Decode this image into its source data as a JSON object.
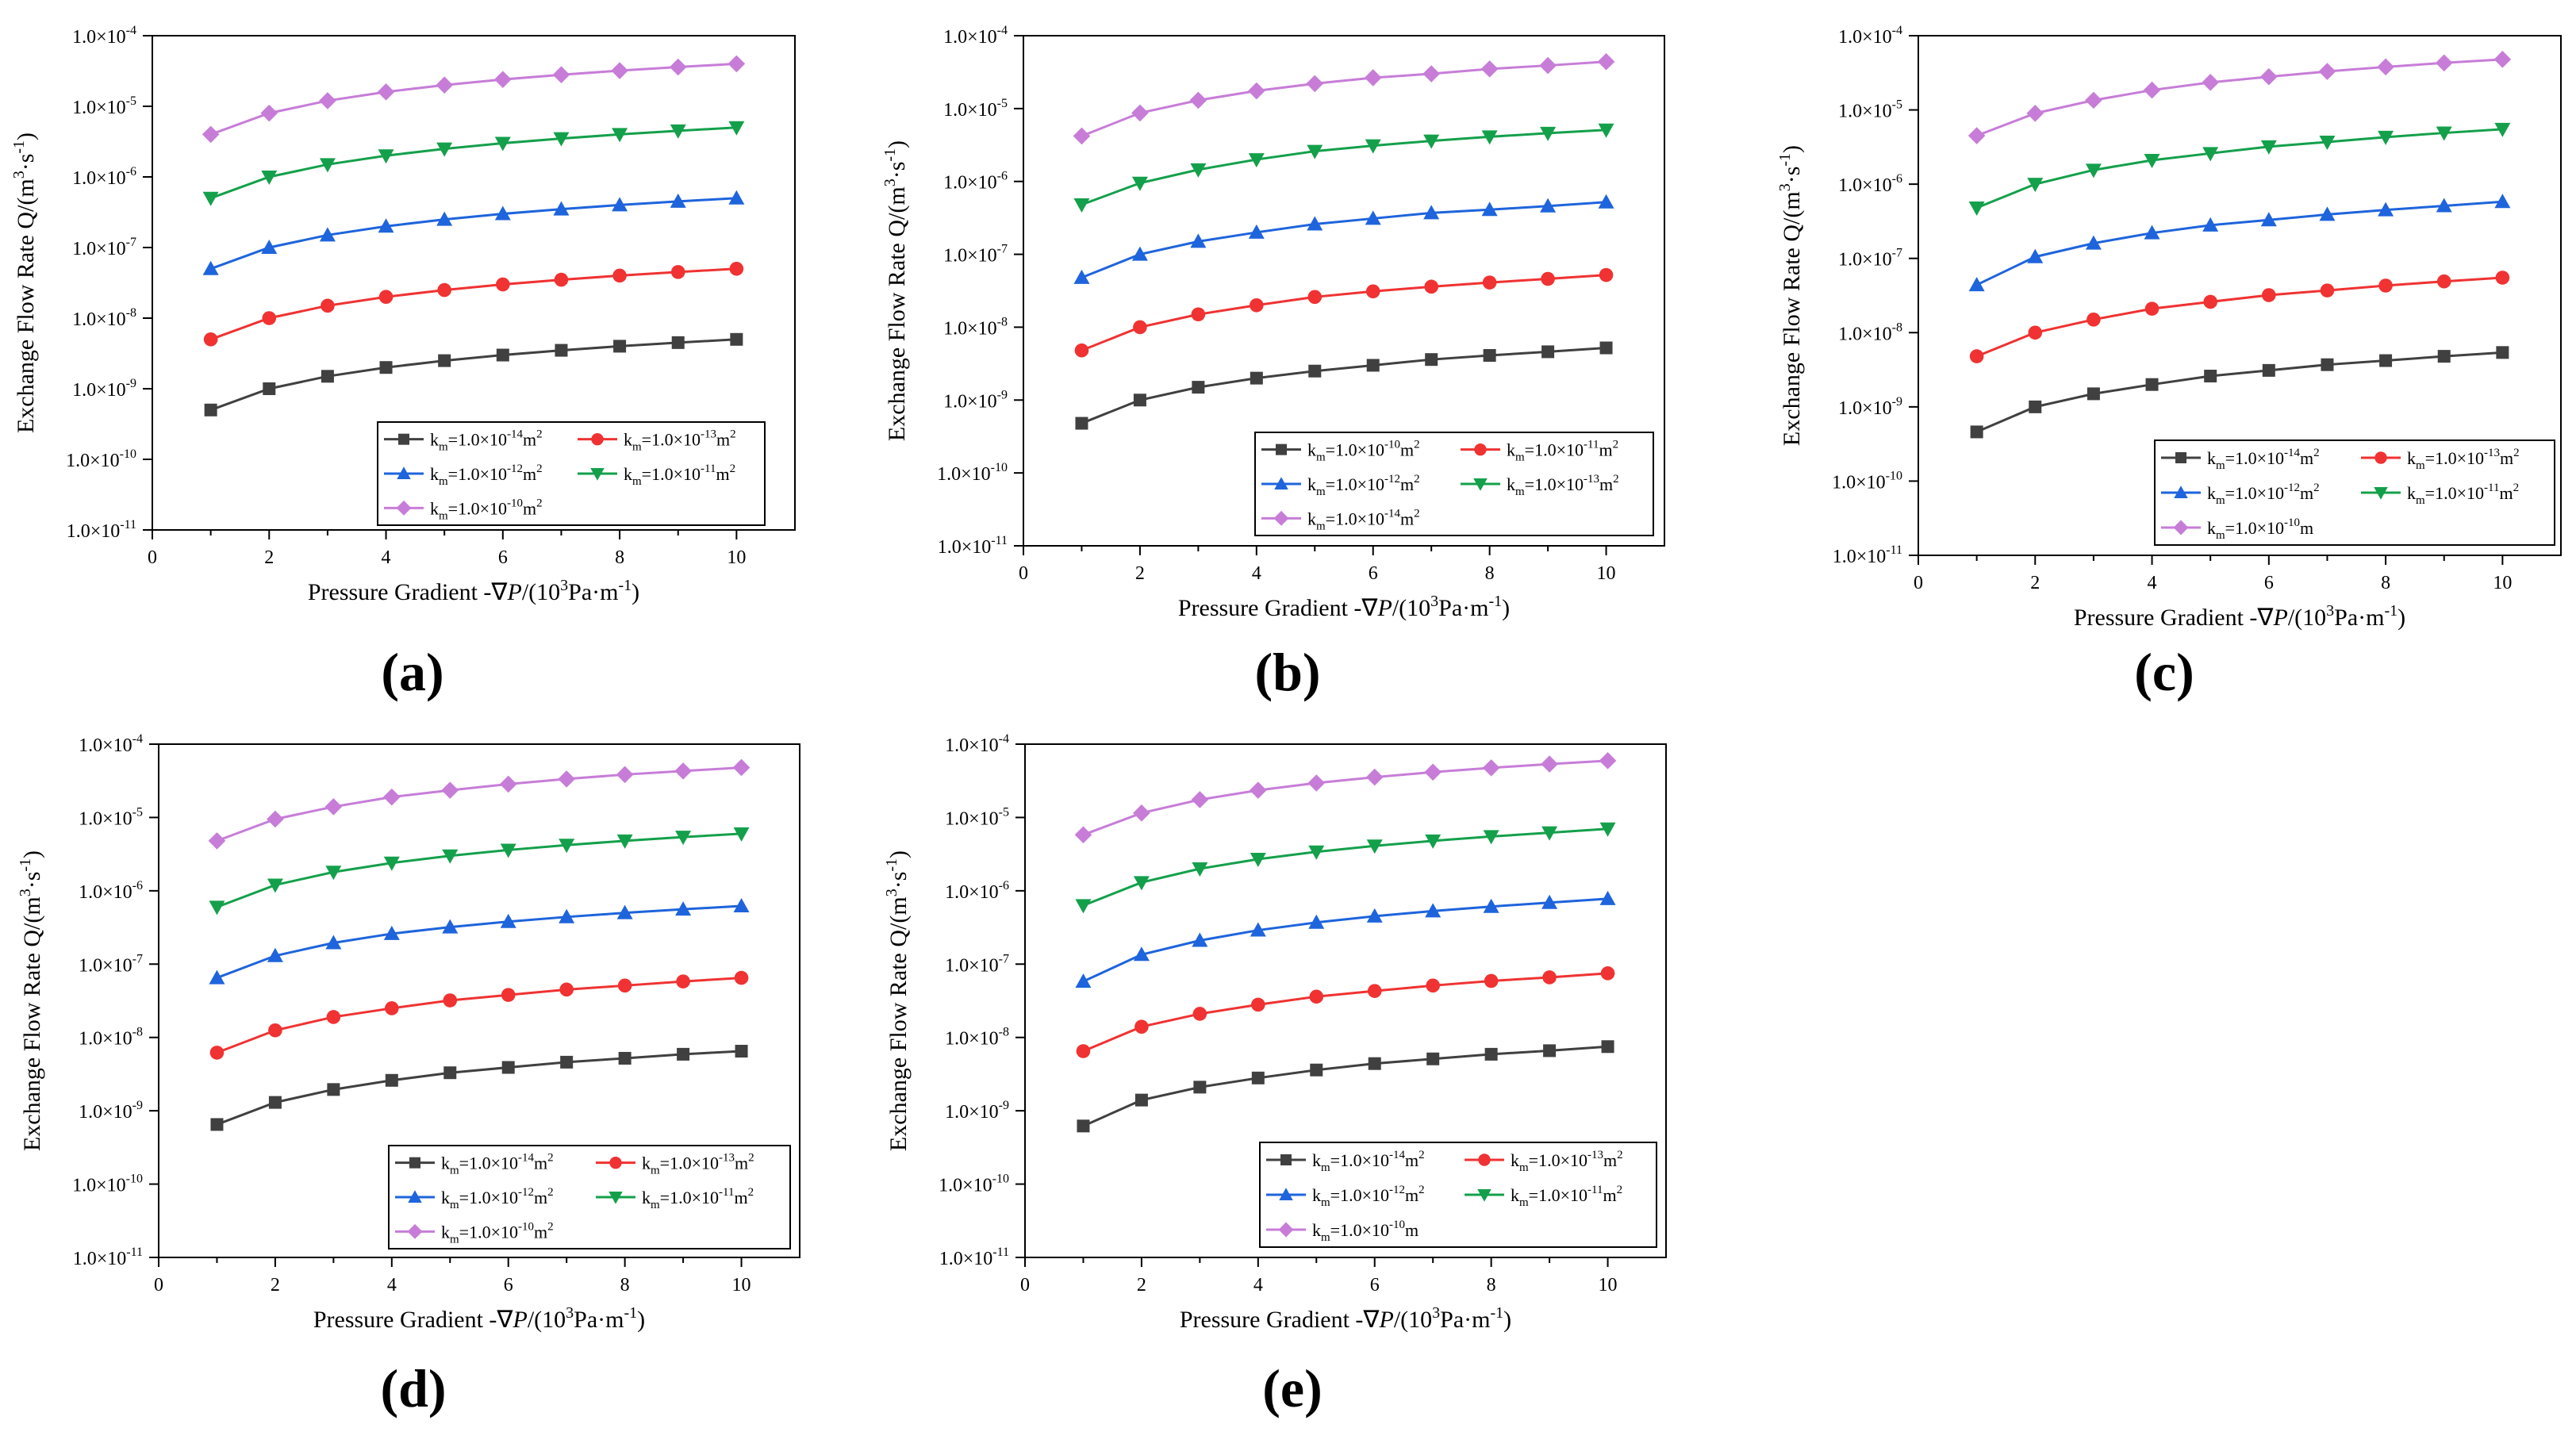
{
  "figure": {
    "colors": {
      "s1": "#404040",
      "s2": "#f03232",
      "s3": "#1e64dc",
      "s4": "#14a04b",
      "s5": "#c77dd8",
      "frame": "#000000"
    },
    "x_ticks": [
      "0",
      "2",
      "4",
      "6",
      "8",
      "10"
    ],
    "y_exponents": [
      "-11",
      "-10",
      "-9",
      "-8",
      "-7",
      "-6",
      "-5",
      "-4"
    ],
    "y_tick_base": "1.0×10",
    "xlabel": {
      "pre": "Pressure Gradient -∇",
      "italic": "P",
      "mid": "/(10",
      "sup": "3",
      "post": "Pa·m",
      "sup2": "-1",
      "end": ")"
    },
    "ylabel": {
      "pre": "Exchange Flow Rate Q/(m",
      "sup": "3",
      "mid": "·s",
      "sup2": "-1",
      "end": ")"
    },
    "legend_k": "k",
    "legend_sub": "m",
    "legend_eq": "=1.0×10"
  },
  "chart_data": [
    {
      "panel_label": "(a)",
      "type": "line",
      "x": [
        1,
        2,
        3,
        4,
        5,
        6,
        7,
        8,
        9,
        10
      ],
      "xlim": [
        0,
        11
      ],
      "ylim_log10": [
        -11,
        -4
      ],
      "xlabel": "Pressure Gradient -∇P/(10³Pa·m⁻¹)",
      "ylabel": "Exchange Flow Rate Q/(m³·s⁻¹)",
      "series": [
        {
          "name": "km=1.0×10⁻¹⁴m²",
          "exp": "-14",
          "unit": "m",
          "unit_sup": "2",
          "marker": "square",
          "color_key": "s1",
          "values": [
            5e-10,
            1e-09,
            1.5e-09,
            2e-09,
            2.5e-09,
            3e-09,
            3.5e-09,
            4e-09,
            4.5e-09,
            5e-09
          ]
        },
        {
          "name": "km=1.0×10⁻¹³m²",
          "exp": "-13",
          "unit": "m",
          "unit_sup": "2",
          "marker": "circle",
          "color_key": "s2",
          "values": [
            5e-09,
            1e-08,
            1.5e-08,
            2e-08,
            2.5e-08,
            3e-08,
            3.5e-08,
            4e-08,
            4.5e-08,
            5e-08
          ]
        },
        {
          "name": "km=1.0×10⁻¹²m²",
          "exp": "-12",
          "unit": "m",
          "unit_sup": "2",
          "marker": "triangle-up",
          "color_key": "s3",
          "values": [
            5e-08,
            1e-07,
            1.5e-07,
            2e-07,
            2.5e-07,
            3e-07,
            3.5e-07,
            4e-07,
            4.5e-07,
            5e-07
          ]
        },
        {
          "name": "km=1.0×10⁻¹¹m²",
          "exp": "-11",
          "unit": "m",
          "unit_sup": "2",
          "marker": "triangle-down",
          "color_key": "s4",
          "values": [
            5e-07,
            1e-06,
            1.5e-06,
            2e-06,
            2.5e-06,
            3e-06,
            3.5e-06,
            4e-06,
            4.5e-06,
            5e-06
          ]
        },
        {
          "name": "km=1.0×10⁻¹⁰m²",
          "exp": "-10",
          "unit": "m",
          "unit_sup": "2",
          "marker": "diamond",
          "color_key": "s5",
          "values": [
            4e-06,
            8e-06,
            1.2e-05,
            1.6e-05,
            2e-05,
            2.4e-05,
            2.8e-05,
            3.2e-05,
            3.6e-05,
            4e-05
          ]
        }
      ]
    },
    {
      "panel_label": "(b)",
      "type": "line",
      "x": [
        1,
        2,
        3,
        4,
        5,
        6,
        7,
        8,
        9,
        10
      ],
      "xlim": [
        0,
        11
      ],
      "ylim_log10": [
        -11,
        -4
      ],
      "xlabel": "Pressure Gradient -∇P/(10³Pa·m⁻¹)",
      "ylabel": "Exchange Flow Rate Q/(m³·s⁻¹)",
      "series": [
        {
          "name": "km=1.0×10⁻¹⁰m²",
          "exp": "-10",
          "unit": "m",
          "unit_sup": "2",
          "marker": "square",
          "color_key": "s1",
          "values": [
            4.8e-10,
            1e-09,
            1.5e-09,
            2e-09,
            2.5e-09,
            3e-09,
            3.6e-09,
            4.1e-09,
            4.6e-09,
            5.2e-09
          ]
        },
        {
          "name": "km=1.0×10⁻¹¹m²",
          "exp": "-11",
          "unit": "m",
          "unit_sup": "2",
          "marker": "circle",
          "color_key": "s2",
          "values": [
            4.8e-09,
            1e-08,
            1.5e-08,
            2e-08,
            2.6e-08,
            3.1e-08,
            3.6e-08,
            4.1e-08,
            4.6e-08,
            5.2e-08
          ]
        },
        {
          "name": "km=1.0×10⁻¹²m²",
          "exp": "-12",
          "unit": "m",
          "unit_sup": "2",
          "marker": "triangle-up",
          "color_key": "s3",
          "values": [
            4.8e-08,
            1e-07,
            1.5e-07,
            2e-07,
            2.6e-07,
            3.1e-07,
            3.7e-07,
            4.1e-07,
            4.6e-07,
            5.2e-07
          ]
        },
        {
          "name": "km=1.0×10⁻¹³m²",
          "exp": "-13",
          "unit": "m",
          "unit_sup": "2",
          "marker": "triangle-down",
          "color_key": "s4",
          "values": [
            4.8e-07,
            9.5e-07,
            1.45e-06,
            2e-06,
            2.6e-06,
            3.1e-06,
            3.6e-06,
            4.1e-06,
            4.6e-06,
            5.1e-06
          ]
        },
        {
          "name": "km=1.0×10⁻¹⁴m²",
          "exp": "-14",
          "unit": "m",
          "unit_sup": "2",
          "marker": "diamond",
          "color_key": "s5",
          "values": [
            4.2e-06,
            8.7e-06,
            1.3e-05,
            1.75e-05,
            2.2e-05,
            2.65e-05,
            3e-05,
            3.5e-05,
            3.9e-05,
            4.4e-05
          ]
        }
      ]
    },
    {
      "panel_label": "(c)",
      "type": "line",
      "x": [
        1,
        2,
        3,
        4,
        5,
        6,
        7,
        8,
        9,
        10
      ],
      "xlim": [
        0,
        11
      ],
      "ylim_log10": [
        -11,
        -4
      ],
      "xlabel": "Pressure Gradient -∇P/(10³Pa·m⁻¹)",
      "ylabel": "Exchange Flow Rate Q/(m³·s⁻¹)",
      "series": [
        {
          "name": "km=1.0×10⁻¹⁴m²",
          "exp": "-14",
          "unit": "m",
          "unit_sup": "2",
          "marker": "square",
          "color_key": "s1",
          "values": [
            4.6e-10,
            1e-09,
            1.5e-09,
            2e-09,
            2.6e-09,
            3.1e-09,
            3.7e-09,
            4.2e-09,
            4.8e-09,
            5.4e-09
          ]
        },
        {
          "name": "km=1.0×10⁻¹³m²",
          "exp": "-13",
          "unit": "m",
          "unit_sup": "2",
          "marker": "circle",
          "color_key": "s2",
          "values": [
            4.8e-09,
            1e-08,
            1.5e-08,
            2.1e-08,
            2.6e-08,
            3.2e-08,
            3.7e-08,
            4.3e-08,
            4.9e-08,
            5.5e-08
          ]
        },
        {
          "name": "km=1.0×10⁻¹²m²",
          "exp": "-12",
          "unit": "m",
          "unit_sup": "2",
          "marker": "triangle-up",
          "color_key": "s3",
          "values": [
            4.4e-08,
            1.05e-07,
            1.6e-07,
            2.2e-07,
            2.8e-07,
            3.3e-07,
            3.9e-07,
            4.5e-07,
            5.1e-07,
            5.8e-07
          ]
        },
        {
          "name": "km=1.0×10⁻¹¹m²",
          "exp": "-11",
          "unit": "m",
          "unit_sup": "2",
          "marker": "triangle-down",
          "color_key": "s4",
          "values": [
            4.8e-07,
            1e-06,
            1.55e-06,
            2.1e-06,
            2.6e-06,
            3.2e-06,
            3.7e-06,
            4.3e-06,
            4.9e-06,
            5.5e-06
          ]
        },
        {
          "name": "km=1.0×10⁻¹⁰m",
          "exp": "-10",
          "unit": "m",
          "unit_sup": "",
          "marker": "diamond",
          "color_key": "s5",
          "values": [
            4.5e-06,
            9e-06,
            1.35e-05,
            1.85e-05,
            2.35e-05,
            2.8e-05,
            3.3e-05,
            3.8e-05,
            4.3e-05,
            4.8e-05
          ]
        }
      ]
    },
    {
      "panel_label": "(d)",
      "type": "line",
      "x": [
        1,
        2,
        3,
        4,
        5,
        6,
        7,
        8,
        9,
        10
      ],
      "xlim": [
        0,
        11
      ],
      "ylim_log10": [
        -11,
        -4
      ],
      "xlabel": "Pressure Gradient -∇P/(10³Pa·m⁻¹)",
      "ylabel": "Exchange Flow Rate Q/(m³·s⁻¹)",
      "series": [
        {
          "name": "km=1.0×10⁻¹⁴m²",
          "exp": "-14",
          "unit": "m",
          "unit_sup": "2",
          "marker": "square",
          "color_key": "s1",
          "values": [
            6.5e-10,
            1.3e-09,
            1.95e-09,
            2.6e-09,
            3.3e-09,
            3.9e-09,
            4.6e-09,
            5.2e-09,
            5.9e-09,
            6.5e-09
          ]
        },
        {
          "name": "km=1.0×10⁻¹³m²",
          "exp": "-13",
          "unit": "m",
          "unit_sup": "2",
          "marker": "circle",
          "color_key": "s2",
          "values": [
            6.2e-09,
            1.25e-08,
            1.9e-08,
            2.5e-08,
            3.2e-08,
            3.8e-08,
            4.5e-08,
            5.1e-08,
            5.8e-08,
            6.5e-08
          ]
        },
        {
          "name": "km=1.0×10⁻¹²m²",
          "exp": "-12",
          "unit": "m",
          "unit_sup": "2",
          "marker": "triangle-up",
          "color_key": "s3",
          "values": [
            6.5e-08,
            1.3e-07,
            1.95e-07,
            2.6e-07,
            3.2e-07,
            3.8e-07,
            4.4e-07,
            5e-07,
            5.6e-07,
            6.2e-07
          ]
        },
        {
          "name": "km=1.0×10⁻¹¹m²",
          "exp": "-11",
          "unit": "m",
          "unit_sup": "2",
          "marker": "triangle-down",
          "color_key": "s4",
          "values": [
            6e-07,
            1.2e-06,
            1.8e-06,
            2.4e-06,
            3e-06,
            3.6e-06,
            4.2e-06,
            4.8e-06,
            5.4e-06,
            6e-06
          ]
        },
        {
          "name": "km=1.0×10⁻¹⁰m²",
          "exp": "-10",
          "unit": "m",
          "unit_sup": "2",
          "marker": "diamond",
          "color_key": "s5",
          "values": [
            4.8e-06,
            9.5e-06,
            1.4e-05,
            1.9e-05,
            2.35e-05,
            2.85e-05,
            3.35e-05,
            3.85e-05,
            4.3e-05,
            4.8e-05
          ]
        }
      ]
    },
    {
      "panel_label": "(e)",
      "type": "line",
      "x": [
        1,
        2,
        3,
        4,
        5,
        6,
        7,
        8,
        9,
        10
      ],
      "xlim": [
        0,
        11
      ],
      "ylim_log10": [
        -11,
        -4
      ],
      "xlabel": "Pressure Gradient -∇P/(10³Pa·m⁻¹)",
      "ylabel": "Exchange Flow Rate Q/(m³·s⁻¹)",
      "series": [
        {
          "name": "km=1.0×10⁻¹⁴m²",
          "exp": "-14",
          "unit": "m",
          "unit_sup": "2",
          "marker": "square",
          "color_key": "s1",
          "values": [
            6.2e-10,
            1.4e-09,
            2.1e-09,
            2.8e-09,
            3.6e-09,
            4.4e-09,
            5.1e-09,
            5.9e-09,
            6.6e-09,
            7.5e-09
          ]
        },
        {
          "name": "km=1.0×10⁻¹³m²",
          "exp": "-13",
          "unit": "m",
          "unit_sup": "2",
          "marker": "circle",
          "color_key": "s2",
          "values": [
            6.5e-09,
            1.4e-08,
            2.1e-08,
            2.8e-08,
            3.6e-08,
            4.3e-08,
            5.1e-08,
            5.9e-08,
            6.6e-08,
            7.5e-08
          ]
        },
        {
          "name": "km=1.0×10⁻¹²m²",
          "exp": "-12",
          "unit": "m",
          "unit_sup": "2",
          "marker": "triangle-up",
          "color_key": "s3",
          "values": [
            5.8e-08,
            1.35e-07,
            2.1e-07,
            2.9e-07,
            3.7e-07,
            4.5e-07,
            5.3e-07,
            6.1e-07,
            6.9e-07,
            7.8e-07
          ]
        },
        {
          "name": "km=1.0×10⁻¹¹m²",
          "exp": "-11",
          "unit": "m",
          "unit_sup": "2",
          "marker": "triangle-down",
          "color_key": "s4",
          "values": [
            6.3e-07,
            1.3e-06,
            2e-06,
            2.7e-06,
            3.4e-06,
            4.1e-06,
            4.8e-06,
            5.5e-06,
            6.2e-06,
            7e-06
          ]
        },
        {
          "name": "km=1.0×10⁻¹⁰m",
          "exp": "-10",
          "unit": "m",
          "unit_sup": "",
          "marker": "diamond",
          "color_key": "s5",
          "values": [
            5.8e-06,
            1.15e-05,
            1.75e-05,
            2.35e-05,
            2.95e-05,
            3.55e-05,
            4.15e-05,
            4.75e-05,
            5.35e-05,
            5.95e-05
          ]
        }
      ]
    }
  ]
}
